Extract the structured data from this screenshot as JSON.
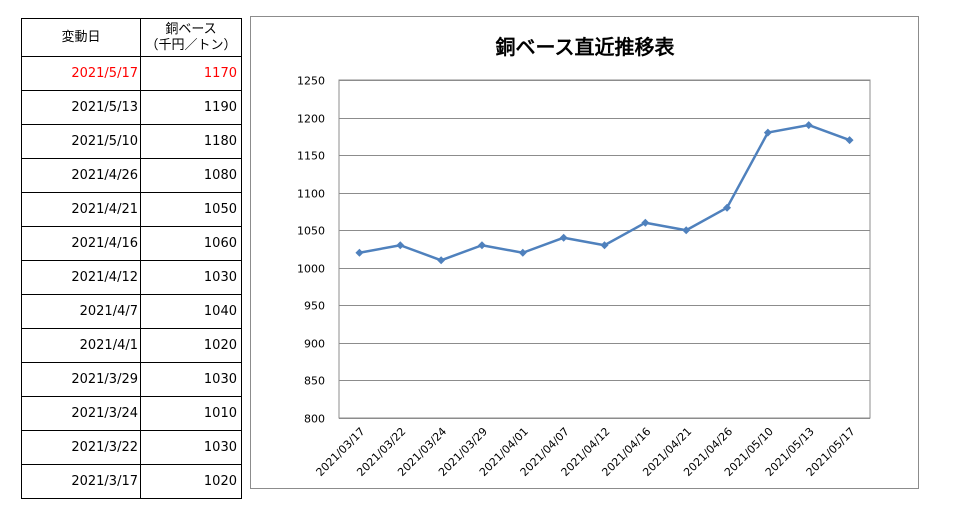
{
  "table": {
    "header_date": "変動日",
    "header_value_line1": "銅ベース",
    "header_value_line2": "（千円／トン）",
    "rows": [
      {
        "date": "2021/5/17",
        "value": "1170"
      },
      {
        "date": "2021/5/13",
        "value": "1190"
      },
      {
        "date": "2021/5/10",
        "value": "1180"
      },
      {
        "date": "2021/4/26",
        "value": "1080"
      },
      {
        "date": "2021/4/21",
        "value": "1050"
      },
      {
        "date": "2021/4/16",
        "value": "1060"
      },
      {
        "date": "2021/4/12",
        "value": "1030"
      },
      {
        "date": "2021/4/7",
        "value": "1040"
      },
      {
        "date": "2021/4/1",
        "value": "1020"
      },
      {
        "date": "2021/3/29",
        "value": "1030"
      },
      {
        "date": "2021/3/24",
        "value": "1010"
      },
      {
        "date": "2021/3/22",
        "value": "1030"
      },
      {
        "date": "2021/3/17",
        "value": "1020"
      }
    ],
    "highlight_color": "#ff0000"
  },
  "chart_data": {
    "type": "line",
    "title": "銅ベース直近推移表",
    "xlabel": "",
    "ylabel": "",
    "categories": [
      "2021/03/17",
      "2021/03/22",
      "2021/03/24",
      "2021/03/29",
      "2021/04/01",
      "2021/04/07",
      "2021/04/12",
      "2021/04/16",
      "2021/04/21",
      "2021/04/26",
      "2021/05/10",
      "2021/05/13",
      "2021/05/17"
    ],
    "series": [
      {
        "values": [
          1020,
          1030,
          1010,
          1030,
          1020,
          1040,
          1030,
          1060,
          1050,
          1080,
          1180,
          1190,
          1170
        ],
        "color": "#4f81bd"
      }
    ],
    "ylim": [
      800,
      1250
    ],
    "yticks": [
      800,
      850,
      900,
      950,
      1000,
      1050,
      1100,
      1150,
      1200,
      1250
    ],
    "grid": true,
    "legend": "none"
  }
}
